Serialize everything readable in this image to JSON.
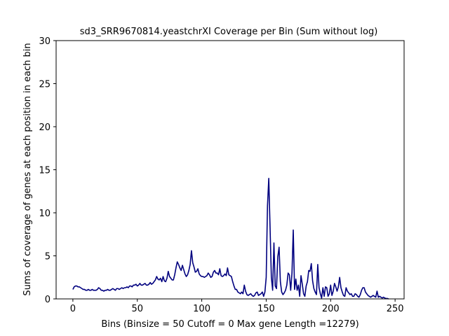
{
  "chart_data": {
    "type": "line",
    "title": "sd3_SRR9670814.yeastchrXI Coverage per Bin (Sum without log)",
    "xlabel": "Bins  (Binsize = 50 Cutoff = 0 Max gene Length =12279)",
    "ylabel": "Sums of coverage of genes at each position in each bin",
    "xlim": [
      -13,
      257
    ],
    "ylim": [
      0,
      30
    ],
    "xticks": [
      0,
      50,
      100,
      150,
      200,
      250
    ],
    "yticks": [
      0,
      5,
      10,
      15,
      20,
      25,
      30
    ],
    "grid": false,
    "line_color": "#00007f",
    "series": [
      {
        "x": [
          0,
          1,
          2,
          3,
          4,
          5,
          6,
          7,
          8,
          9,
          10,
          11,
          12,
          13,
          14,
          15,
          16,
          17,
          18,
          19,
          20,
          21,
          22,
          23,
          24,
          25,
          26,
          27,
          28,
          29,
          30,
          31,
          32,
          33,
          34,
          35,
          36,
          37,
          38,
          39,
          40,
          41,
          42,
          43,
          44,
          45,
          46,
          47,
          48,
          49,
          50,
          51,
          52,
          53,
          54,
          55,
          56,
          57,
          58,
          59,
          60,
          61,
          62,
          63,
          64,
          65,
          66,
          67,
          68,
          69,
          70,
          71,
          72,
          73,
          74,
          75,
          76,
          77,
          78,
          79,
          80,
          81,
          82,
          83,
          84,
          85,
          86,
          87,
          88,
          89,
          90,
          91,
          92,
          93,
          94,
          95,
          96,
          97,
          98,
          99,
          100,
          101,
          102,
          103,
          104,
          105,
          106,
          107,
          108,
          109,
          110,
          111,
          112,
          113,
          114,
          115,
          116,
          117,
          118,
          119,
          120,
          121,
          122,
          123,
          124,
          125,
          126,
          127,
          128,
          129,
          130,
          131,
          132,
          133,
          134,
          135,
          136,
          137,
          138,
          139,
          140,
          141,
          142,
          143,
          144,
          145,
          146,
          147,
          148,
          149,
          150,
          151,
          152,
          153,
          154,
          155,
          156,
          157,
          158,
          159,
          160,
          161,
          162,
          163,
          164,
          165,
          166,
          167,
          168,
          169,
          170,
          171,
          172,
          173,
          174,
          175,
          176,
          177,
          178,
          179,
          180,
          181,
          182,
          183,
          184,
          185,
          186,
          187,
          188,
          189,
          190,
          191,
          192,
          193,
          194,
          195,
          196,
          197,
          198,
          199,
          200,
          201,
          202,
          203,
          204,
          205,
          206,
          207,
          208,
          209,
          210,
          211,
          212,
          213,
          214,
          215,
          216,
          217,
          218,
          219,
          220,
          221,
          222,
          223,
          224,
          225,
          226,
          227,
          228,
          229,
          230,
          231,
          232,
          233,
          234,
          235,
          236,
          237,
          238,
          239,
          240,
          241,
          242,
          243,
          244,
          245
        ],
        "y": [
          1.1,
          1.4,
          1.5,
          1.5,
          1.4,
          1.4,
          1.3,
          1.2,
          1.1,
          1.1,
          1.0,
          1.0,
          1.1,
          1.0,
          1.0,
          1.1,
          1.0,
          1.0,
          1.0,
          1.1,
          1.3,
          1.2,
          1.0,
          1.0,
          0.9,
          1.0,
          1.0,
          1.1,
          1.0,
          1.0,
          1.1,
          1.2,
          1.1,
          1.0,
          1.2,
          1.2,
          1.1,
          1.2,
          1.3,
          1.2,
          1.3,
          1.3,
          1.4,
          1.3,
          1.5,
          1.5,
          1.4,
          1.6,
          1.6,
          1.7,
          1.5,
          1.6,
          1.8,
          1.6,
          1.6,
          1.7,
          1.8,
          1.6,
          1.6,
          1.7,
          1.9,
          1.7,
          1.8,
          2.0,
          2.2,
          2.6,
          2.3,
          2.2,
          2.4,
          2.0,
          2.6,
          2.1,
          2.0,
          2.4,
          3.2,
          2.6,
          2.4,
          2.2,
          2.2,
          2.8,
          3.6,
          4.3,
          4.0,
          3.6,
          3.3,
          3.9,
          3.4,
          2.9,
          2.6,
          2.8,
          3.3,
          4.0,
          5.6,
          4.2,
          3.7,
          3.1,
          3.2,
          3.5,
          2.9,
          2.7,
          2.6,
          2.6,
          2.5,
          2.6,
          2.7,
          3.0,
          2.8,
          2.5,
          2.6,
          3.1,
          3.3,
          3.0,
          3.0,
          2.8,
          3.5,
          2.7,
          2.6,
          2.7,
          2.9,
          2.7,
          3.6,
          2.8,
          2.7,
          2.6,
          2.0,
          1.5,
          1.1,
          1.1,
          0.8,
          0.7,
          0.6,
          0.8,
          0.6,
          1.6,
          0.9,
          0.5,
          0.4,
          0.5,
          0.6,
          0.4,
          0.3,
          0.4,
          0.7,
          0.8,
          0.4,
          0.5,
          0.6,
          0.8,
          0.3,
          0.8,
          2.5,
          10.8,
          14.0,
          8.3,
          2.5,
          1.0,
          6.5,
          1.5,
          1.2,
          4.9,
          6.0,
          2.0,
          0.8,
          0.5,
          0.7,
          1.0,
          1.6,
          3.0,
          2.8,
          1.0,
          3.0,
          8.0,
          1.1,
          2.3,
          1.0,
          1.6,
          0.3,
          2.7,
          1.7,
          0.6,
          0.3,
          1.5,
          2.0,
          3.3,
          3.2,
          4.1,
          2.1,
          1.2,
          0.8,
          0.5,
          4.0,
          1.3,
          0.6,
          0.1,
          1.3,
          0.3,
          1.4,
          1.3,
          0.3,
          0.6,
          1.6,
          0.4,
          0.9,
          1.8,
          1.4,
          0.9,
          1.4,
          2.5,
          1.3,
          0.8,
          0.4,
          0.3,
          1.3,
          0.9,
          0.7,
          0.5,
          0.6,
          0.3,
          0.3,
          0.6,
          0.5,
          0.3,
          0.2,
          0.5,
          1.0,
          1.3,
          1.3,
          0.8,
          0.6,
          0.4,
          0.3,
          0.2,
          0.3,
          0.4,
          0.3,
          0.2,
          0.9,
          0.2,
          0.3,
          0.2,
          0.1,
          0.2,
          0.1,
          0.05,
          0.05,
          0.0
        ]
      }
    ]
  }
}
